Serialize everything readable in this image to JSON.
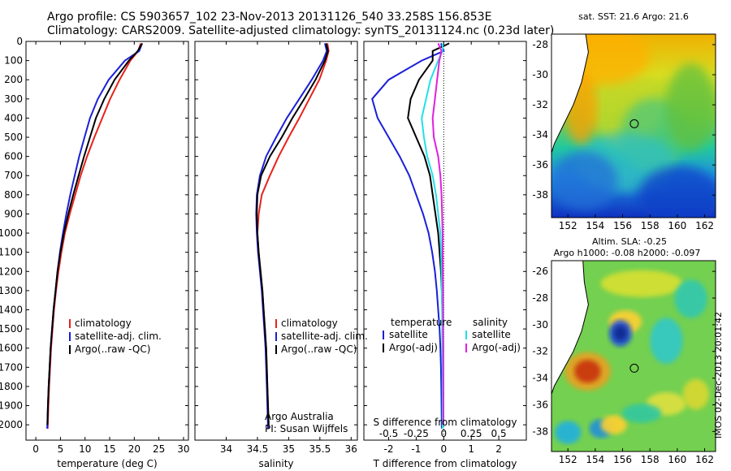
{
  "header": {
    "line1": "Argo profile: CS 5903657_102 23-Nov-2013 20131126_540 33.258S 156.853E",
    "line2": "Climatology: CARS2009. Satellite-adjusted climatology: synTS_20131124.nc (0.23d later)"
  },
  "stamp": "IMOS 02-Dec-2013 20:01:42",
  "colors": {
    "climatology": "#e8221c",
    "satellite": "#1a1fd8",
    "argo": "#000000",
    "satellite_salinity": "#22e0e8",
    "argo_salinity": "#e020e0"
  },
  "chart_data": [
    {
      "type": "line",
      "name": "temperature-profile",
      "xlabel": "temperature (deg C)",
      "ylabel": "",
      "xlim": [
        -2,
        31
      ],
      "ylim": [
        2080,
        0
      ],
      "xticks": [
        0,
        5,
        10,
        15,
        20,
        25,
        30
      ],
      "xtick_labels": [
        "0",
        "5",
        "10",
        "15",
        "20",
        "25",
        "30"
      ],
      "yticks": [
        0,
        100,
        200,
        300,
        400,
        500,
        600,
        700,
        800,
        900,
        1000,
        1100,
        1200,
        1300,
        1400,
        1500,
        1600,
        1700,
        1800,
        1900,
        2000
      ],
      "ytick_labels": [
        "0",
        "100",
        "200",
        "300",
        "400",
        "500",
        "600",
        "700",
        "800",
        "900",
        "1000",
        "1100",
        "1200",
        "1300",
        "1400",
        "1500",
        "1600",
        "1700",
        "1800",
        "1900",
        "2000"
      ],
      "legend": [
        "climatology",
        "satellite-adj. clim.",
        "Argo(..raw -QC)"
      ],
      "series": [
        {
          "name": "climatology",
          "x": [
            21.3,
            20.8,
            19.2,
            17.0,
            15.1,
            13.5,
            11.9,
            10.4,
            9.1,
            8.0,
            6.9,
            5.9,
            5.2,
            4.6,
            4.1,
            3.7,
            3.4,
            3.1,
            2.9,
            2.7,
            2.55,
            2.4
          ],
          "y": [
            10,
            50,
            100,
            200,
            300,
            400,
            500,
            600,
            700,
            800,
            900,
            1000,
            1100,
            1200,
            1300,
            1400,
            1500,
            1600,
            1700,
            1800,
            1900,
            2020
          ]
        },
        {
          "name": "satellite-adj. clim.",
          "x": [
            21.6,
            21.0,
            18.1,
            14.8,
            12.6,
            11.0,
            9.9,
            8.8,
            7.9,
            7.0,
            6.2,
            5.5,
            4.9,
            4.4,
            4.0,
            3.6,
            3.3,
            3.0,
            2.8,
            2.6,
            2.45,
            2.3
          ],
          "y": [
            10,
            50,
            100,
            200,
            300,
            400,
            500,
            600,
            700,
            800,
            900,
            1000,
            1100,
            1200,
            1300,
            1400,
            1500,
            1600,
            1700,
            1800,
            1900,
            2020
          ]
        },
        {
          "name": "Argo(..raw -QC)",
          "x": [
            21.6,
            20.7,
            18.9,
            16.0,
            13.9,
            12.2,
            11.0,
            9.8,
            8.7,
            7.6,
            6.6,
            5.7,
            5.0,
            4.4,
            4.0,
            3.6,
            3.3,
            3.0,
            2.8,
            2.6,
            2.45,
            2.35
          ],
          "y": [
            10,
            50,
            100,
            200,
            300,
            400,
            500,
            600,
            700,
            800,
            900,
            1000,
            1100,
            1200,
            1300,
            1400,
            1500,
            1600,
            1700,
            1800,
            1900,
            2000
          ]
        }
      ]
    },
    {
      "type": "line",
      "name": "salinity-profile",
      "xlabel": "salinity",
      "xlim": [
        33.5,
        36.1
      ],
      "ylim": [
        2080,
        0
      ],
      "xticks": [
        34,
        34.5,
        35,
        35.5,
        36
      ],
      "xtick_labels": [
        "34",
        "34.5",
        "35",
        "35.5",
        "36"
      ],
      "legend": [
        "climatology",
        "satellite-adj. clim.",
        "Argo(..raw -QC)"
      ],
      "annotation": [
        "Argo Australia",
        "PI: Susan Wijffels"
      ],
      "series": [
        {
          "name": "climatology",
          "x": [
            35.62,
            35.64,
            35.6,
            35.49,
            35.33,
            35.17,
            35.0,
            34.84,
            34.7,
            34.57,
            34.52,
            34.5,
            34.52,
            34.55,
            34.58,
            34.6,
            34.62,
            34.64,
            34.65,
            34.66,
            34.67,
            34.68
          ],
          "y": [
            10,
            50,
            100,
            200,
            300,
            400,
            500,
            600,
            700,
            800,
            900,
            1000,
            1100,
            1200,
            1300,
            1400,
            1500,
            1600,
            1700,
            1800,
            1900,
            2020
          ]
        },
        {
          "name": "satellite-adj. clim.",
          "x": [
            35.58,
            35.61,
            35.55,
            35.37,
            35.17,
            34.97,
            34.8,
            34.64,
            34.54,
            34.49,
            34.48,
            34.49,
            34.51,
            34.54,
            34.57,
            34.59,
            34.61,
            34.63,
            34.64,
            34.65,
            34.66,
            34.67
          ],
          "y": [
            10,
            50,
            100,
            200,
            300,
            400,
            500,
            600,
            700,
            800,
            900,
            1000,
            1100,
            1200,
            1300,
            1400,
            1500,
            1600,
            1700,
            1800,
            1900,
            2020
          ]
        },
        {
          "name": "Argo(..raw -QC)",
          "x": [
            35.6,
            35.63,
            35.58,
            35.43,
            35.25,
            35.06,
            34.89,
            34.7,
            34.56,
            34.5,
            34.49,
            34.5,
            34.52,
            34.55,
            34.58,
            34.6,
            34.62,
            34.64,
            34.65,
            34.66,
            34.67,
            34.68
          ],
          "y": [
            10,
            50,
            100,
            200,
            300,
            400,
            500,
            600,
            700,
            800,
            900,
            1000,
            1100,
            1200,
            1300,
            1400,
            1500,
            1600,
            1700,
            1800,
            1900,
            2000
          ]
        }
      ]
    },
    {
      "type": "line",
      "name": "difference-profile",
      "xlabel": "T difference from climatology",
      "xlabel_top": "S difference from climatology",
      "xlim": [
        -2.9,
        3.0
      ],
      "ylim": [
        2080,
        0
      ],
      "xticks": [
        -2,
        -1,
        0,
        1,
        2
      ],
      "xtick_labels": [
        "-2",
        "-1",
        "0",
        "1",
        "2"
      ],
      "s_ticks": [
        -0.5,
        -0.25,
        0,
        0.25,
        0.5
      ],
      "s_tick_labels": [
        "-0.5",
        "-0.25",
        "0",
        "0.25",
        "0.5"
      ],
      "s_scale": 4,
      "zero_line": true,
      "legend_temperature": {
        "title": "temperature",
        "items": [
          "satellite",
          "Argo(-adj)"
        ]
      },
      "legend_salinity": {
        "title": "salinity",
        "items": [
          "satellite",
          "Argo(-adj)"
        ]
      },
      "series": [
        {
          "name": "T satellite",
          "x": [
            -0.1,
            0.0,
            -0.8,
            -2.0,
            -2.6,
            -2.4,
            -2.0,
            -1.6,
            -1.25,
            -1.0,
            -0.75,
            -0.55,
            -0.42,
            -0.32,
            -0.25,
            -0.2,
            -0.15,
            -0.12,
            -0.1,
            -0.09,
            -0.08,
            -0.07
          ],
          "y": [
            10,
            50,
            100,
            200,
            300,
            400,
            500,
            600,
            700,
            800,
            900,
            1000,
            1100,
            1200,
            1300,
            1400,
            1500,
            1600,
            1700,
            1800,
            1900,
            2020
          ]
        },
        {
          "name": "T Argo(-adj)",
          "x": [
            0.2,
            -0.4,
            -0.4,
            -0.9,
            -1.2,
            -1.3,
            -1.0,
            -0.7,
            -0.5,
            -0.4,
            -0.3,
            -0.2,
            -0.15,
            -0.1,
            -0.07,
            -0.05,
            -0.05,
            -0.04,
            -0.03,
            -0.03,
            -0.03,
            -0.02
          ],
          "y": [
            10,
            50,
            100,
            200,
            300,
            400,
            500,
            600,
            700,
            800,
            900,
            1000,
            1100,
            1200,
            1300,
            1400,
            1500,
            1600,
            1700,
            1800,
            1900,
            2000
          ]
        },
        {
          "name": "S satellite",
          "x": [
            -0.01,
            -0.01,
            -0.05,
            -0.12,
            -0.16,
            -0.2,
            -0.18,
            -0.15,
            -0.1,
            -0.07,
            -0.05,
            -0.03,
            -0.025,
            -0.02,
            -0.018,
            -0.015,
            -0.013,
            -0.012,
            -0.011,
            -0.01,
            -0.01,
            -0.01
          ],
          "y": [
            10,
            50,
            100,
            200,
            300,
            400,
            500,
            600,
            700,
            800,
            900,
            1000,
            1100,
            1200,
            1300,
            1400,
            1500,
            1600,
            1700,
            1800,
            1900,
            2020
          ]
        },
        {
          "name": "S Argo(-adj)",
          "x": [
            -0.05,
            -0.02,
            -0.04,
            -0.06,
            -0.08,
            -0.1,
            -0.09,
            -0.05,
            -0.03,
            -0.02,
            -0.015,
            -0.01,
            -0.01,
            -0.008,
            -0.006,
            -0.005,
            -0.005,
            -0.004,
            -0.004,
            -0.003,
            -0.003,
            -0.003
          ],
          "y": [
            10,
            50,
            100,
            200,
            300,
            400,
            500,
            600,
            700,
            800,
            900,
            1000,
            1100,
            1200,
            1300,
            1400,
            1500,
            1600,
            1700,
            1800,
            1900,
            2000
          ]
        }
      ]
    },
    {
      "type": "heatmap",
      "name": "sst-map",
      "title": "sat. SST: 21.6  Argo: 21.6",
      "xlim": [
        150.8,
        162.8
      ],
      "ylim": [
        -39.5,
        -27.3
      ],
      "xticks": [
        152,
        154,
        156,
        158,
        160,
        162
      ],
      "xtick_labels": [
        "152",
        "154",
        "156",
        "158",
        "160",
        "162"
      ],
      "yticks": [
        -28,
        -30,
        -32,
        -34,
        -36,
        -38
      ],
      "ytick_labels": [
        "-28",
        "-30",
        "-32",
        "-34",
        "-36",
        "-38"
      ],
      "profile_location": [
        156.853,
        -33.258
      ]
    },
    {
      "type": "heatmap",
      "name": "sla-map",
      "title": [
        "Altim. SLA: -0.25",
        "Argo h1000: -0.08 h2000: -0.097"
      ],
      "xlim": [
        150.8,
        162.8
      ],
      "ylim": [
        -39.5,
        -25.2
      ],
      "xticks": [
        152,
        154,
        156,
        158,
        160,
        162
      ],
      "xtick_labels": [
        "152",
        "154",
        "156",
        "158",
        "160",
        "162"
      ],
      "yticks": [
        -26,
        -28,
        -30,
        -32,
        -34,
        -36,
        -38
      ],
      "ytick_labels": [
        "-26",
        "-28",
        "-30",
        "-32",
        "-34",
        "-36",
        "-38"
      ],
      "profile_location": [
        156.853,
        -33.258
      ]
    }
  ]
}
